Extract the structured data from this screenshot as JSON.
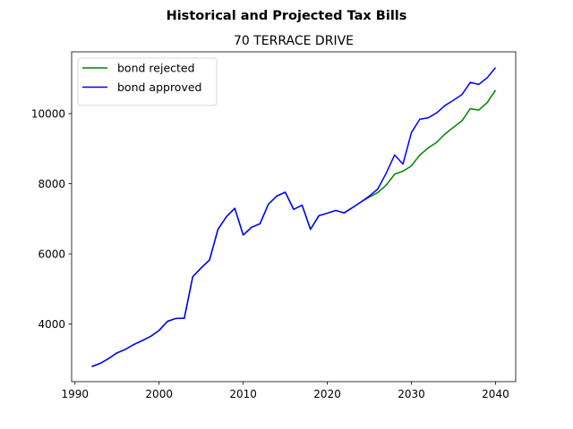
{
  "chart_data": {
    "type": "line",
    "suptitle": "Historical and Projected Tax Bills",
    "title": "70 TERRACE DRIVE",
    "xlabel": "",
    "ylabel": "",
    "xlim": [
      1989.6,
      2042.4
    ],
    "ylim": [
      2360,
      11760
    ],
    "xticks": [
      1990,
      2000,
      2010,
      2020,
      2030,
      2040
    ],
    "yticks": [
      4000,
      6000,
      8000,
      10000
    ],
    "grid": false,
    "legend_position": "upper-left",
    "series": [
      {
        "name": "bond rejected",
        "color": "#008000",
        "x": [
          1992,
          1993,
          1994,
          1995,
          1996,
          1997,
          1998,
          1999,
          2000,
          2001,
          2002,
          2003,
          2004,
          2005,
          2006,
          2007,
          2008,
          2009,
          2010,
          2011,
          2012,
          2013,
          2014,
          2015,
          2016,
          2017,
          2018,
          2019,
          2020,
          2021,
          2022,
          2023,
          2024,
          2025,
          2026,
          2027,
          2028,
          2029,
          2030,
          2031,
          2032,
          2033,
          2034,
          2035,
          2036,
          2037,
          2038,
          2039,
          2040
        ],
        "values": [
          2790,
          2880,
          3020,
          3180,
          3280,
          3420,
          3530,
          3650,
          3820,
          4080,
          4160,
          4170,
          5350,
          5600,
          5830,
          6700,
          7060,
          7300,
          6540,
          6760,
          6860,
          7420,
          7650,
          7760,
          7270,
          7390,
          6700,
          7090,
          7160,
          7240,
          7170,
          7320,
          7480,
          7620,
          7750,
          7960,
          8270,
          8360,
          8510,
          8820,
          9020,
          9180,
          9420,
          9610,
          9790,
          10140,
          10100,
          10310,
          10670
        ]
      },
      {
        "name": "bond approved",
        "color": "#0000ff",
        "x": [
          1992,
          1993,
          1994,
          1995,
          1996,
          1997,
          1998,
          1999,
          2000,
          2001,
          2002,
          2003,
          2004,
          2005,
          2006,
          2007,
          2008,
          2009,
          2010,
          2011,
          2012,
          2013,
          2014,
          2015,
          2016,
          2017,
          2018,
          2019,
          2020,
          2021,
          2022,
          2023,
          2024,
          2025,
          2026,
          2027,
          2028,
          2029,
          2030,
          2031,
          2032,
          2033,
          2034,
          2035,
          2036,
          2037,
          2038,
          2039,
          2040
        ],
        "values": [
          2790,
          2880,
          3020,
          3180,
          3280,
          3420,
          3530,
          3650,
          3820,
          4080,
          4160,
          4170,
          5350,
          5600,
          5830,
          6700,
          7060,
          7300,
          6540,
          6760,
          6860,
          7420,
          7650,
          7760,
          7270,
          7390,
          6700,
          7090,
          7160,
          7240,
          7170,
          7320,
          7480,
          7650,
          7850,
          8300,
          8820,
          8560,
          9460,
          9840,
          9880,
          10020,
          10230,
          10380,
          10540,
          10890,
          10830,
          11020,
          11310
        ]
      }
    ]
  }
}
